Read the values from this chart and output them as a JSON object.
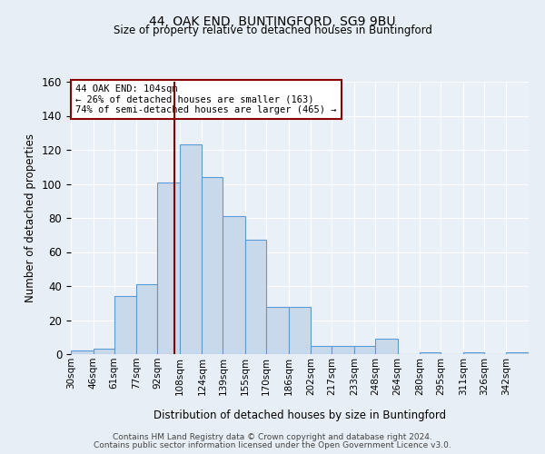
{
  "title": "44, OAK END, BUNTINGFORD, SG9 9BU",
  "subtitle": "Size of property relative to detached houses in Buntingford",
  "xlabel": "Distribution of detached houses by size in Buntingford",
  "ylabel": "Number of detached properties",
  "bin_labels": [
    "30sqm",
    "46sqm",
    "61sqm",
    "77sqm",
    "92sqm",
    "108sqm",
    "124sqm",
    "139sqm",
    "155sqm",
    "170sqm",
    "186sqm",
    "202sqm",
    "217sqm",
    "233sqm",
    "248sqm",
    "264sqm",
    "280sqm",
    "295sqm",
    "311sqm",
    "326sqm",
    "342sqm"
  ],
  "bin_edges": [
    30,
    46,
    61,
    77,
    92,
    108,
    124,
    139,
    155,
    170,
    186,
    202,
    217,
    233,
    248,
    264,
    280,
    295,
    311,
    326,
    342,
    358
  ],
  "bar_heights": [
    2,
    3,
    34,
    41,
    101,
    123,
    104,
    81,
    67,
    28,
    28,
    5,
    5,
    5,
    9,
    0,
    1,
    0,
    1,
    0,
    1
  ],
  "bar_facecolor": "#c9d9ec",
  "bar_edgecolor": "#5b9bd5",
  "vline_x": 104,
  "vline_color": "#8b0000",
  "annotation_title": "44 OAK END: 104sqm",
  "annotation_line1": "← 26% of detached houses are smaller (163)",
  "annotation_line2": "74% of semi-detached houses are larger (465) →",
  "annotation_box_color": "#8b0000",
  "ylim": [
    0,
    160
  ],
  "yticks": [
    0,
    20,
    40,
    60,
    80,
    100,
    120,
    140,
    160
  ],
  "footer_line1": "Contains HM Land Registry data © Crown copyright and database right 2024.",
  "footer_line2": "Contains public sector information licensed under the Open Government Licence v3.0.",
  "bg_color": "#e8eef5",
  "plot_bg_color": "#eaf0f8"
}
